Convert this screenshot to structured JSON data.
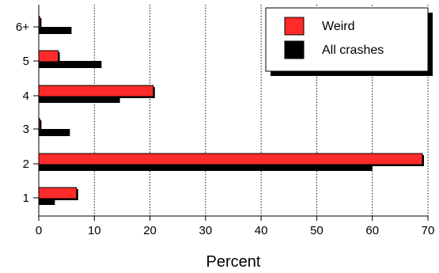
{
  "chart_data": {
    "type": "bar",
    "orientation": "horizontal",
    "categories": [
      "1",
      "2",
      "3",
      "4",
      "5",
      "6+"
    ],
    "series": [
      {
        "name": "Weird",
        "values": [
          6.8,
          69.0,
          0.2,
          20.6,
          3.5,
          0.2
        ],
        "color": "#ff2a2a"
      },
      {
        "name": "All crashes",
        "values": [
          2.9,
          60.0,
          5.6,
          14.6,
          11.3,
          5.9
        ],
        "color": "#000000"
      }
    ],
    "x_ticks": [
      "0",
      "10",
      "20",
      "30",
      "40",
      "50",
      "60",
      "70"
    ],
    "xlim": [
      0,
      70
    ],
    "xlabel": "Percent",
    "grid": "vertical dotted",
    "legend_position": "top-right"
  }
}
